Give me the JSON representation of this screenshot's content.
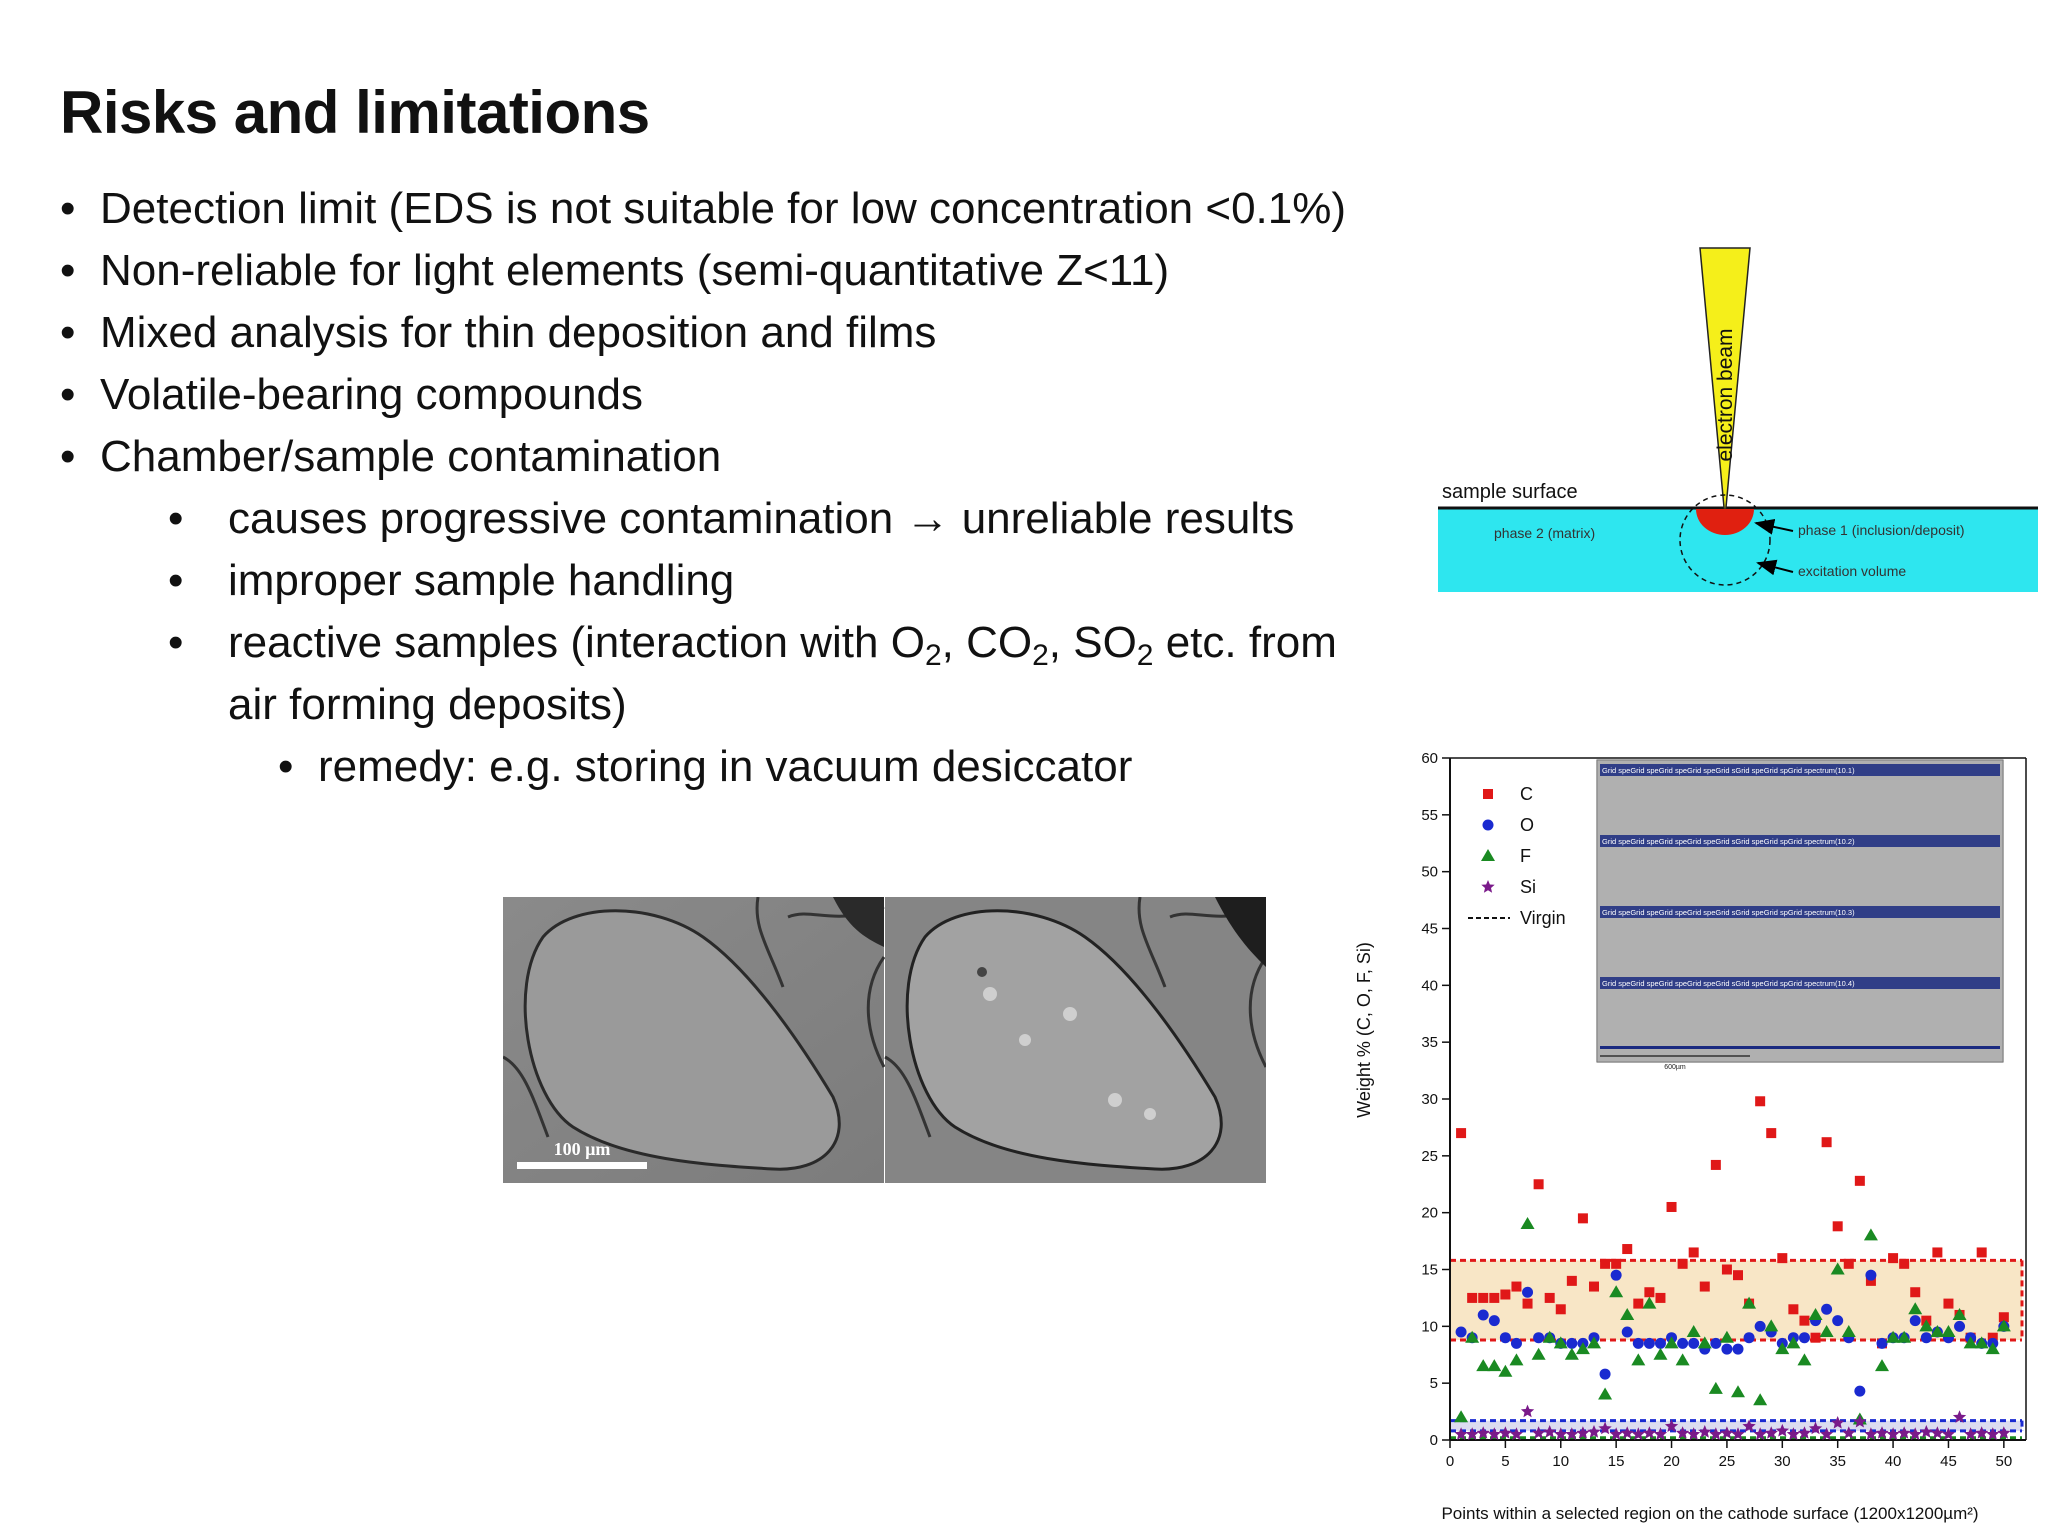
{
  "slide": {
    "title": "Risks and limitations",
    "bullets": [
      "Detection limit (EDS is not suitable for low concentration <0.1%)",
      "Non-reliable for light elements (semi-quantitative Z<11)",
      "Mixed analysis for thin deposition and films",
      "Volatile-bearing compounds",
      "Chamber/sample contamination"
    ],
    "sub_bullets": [
      "causes progressive contamination → unreliable results",
      "improper sample handling"
    ],
    "reactive": {
      "p1": "reactive samples (interaction with O",
      "s1": "2",
      "p2": ", CO",
      "s2": "2",
      "p3": ", SO",
      "s3": "2",
      "p4": " etc. from",
      "line2": "air forming deposits)"
    },
    "remedy": "remedy: e.g. storing in vacuum desiccator",
    "bullet_glyph": "•"
  },
  "diagram": {
    "beam_label": "electron beam",
    "surface_label": "sample surface",
    "matrix_label": "phase 2 (matrix)",
    "inclusion_label": "phase 1 (inclusion/deposit)",
    "volume_label": "excitation volume",
    "colors": {
      "beam": "#f5ef1a",
      "sample": "#2ee6ef",
      "inclusion": "#e02010"
    }
  },
  "micrograph": {
    "scale_label": "100 µm"
  },
  "chart_data": {
    "type": "scatter",
    "xlabel": "Points within a selected region on the cathode surface (1200x1200µm²)",
    "ylabel": "Weight % (C, O, F, Si)",
    "xlim": [
      0,
      52
    ],
    "ylim": [
      0,
      60
    ],
    "xticks": [
      0,
      5,
      10,
      15,
      20,
      25,
      30,
      35,
      40,
      45,
      50
    ],
    "yticks": [
      0,
      5,
      10,
      15,
      20,
      25,
      30,
      35,
      40,
      45,
      50,
      55,
      60
    ],
    "legend_position": "top-left",
    "series": [
      {
        "name": "C",
        "color": "#e01818",
        "marker": "square",
        "x": [
          1,
          2,
          3,
          4,
          5,
          6,
          7,
          8,
          9,
          10,
          11,
          12,
          13,
          14,
          15,
          16,
          17,
          18,
          19,
          20,
          21,
          22,
          23,
          24,
          25,
          26,
          27,
          28,
          29,
          30,
          31,
          32,
          33,
          34,
          35,
          36,
          37,
          38,
          39,
          40,
          41,
          42,
          43,
          44,
          45,
          46,
          47,
          48,
          49,
          50
        ],
        "y": [
          27,
          12.5,
          12.5,
          12.5,
          12.8,
          13.5,
          12,
          22.5,
          12.5,
          11.5,
          14,
          19.5,
          13.5,
          15.5,
          15.5,
          16.8,
          12,
          13,
          12.5,
          20.5,
          15.5,
          16.5,
          13.5,
          24.2,
          15,
          14.5,
          12,
          29.8,
          27,
          16,
          11.5,
          10.5,
          9,
          26.2,
          18.8,
          15.5,
          22.8,
          14,
          8.5,
          16,
          15.5,
          13,
          10.5,
          16.5,
          12,
          11,
          9,
          16.5,
          9,
          10.8
        ]
      },
      {
        "name": "O",
        "color": "#1a2ad0",
        "marker": "circle",
        "x": [
          1,
          2,
          3,
          4,
          5,
          6,
          7,
          8,
          9,
          10,
          11,
          12,
          13,
          14,
          15,
          16,
          17,
          18,
          19,
          20,
          21,
          22,
          23,
          24,
          25,
          26,
          27,
          28,
          29,
          30,
          31,
          32,
          33,
          34,
          35,
          36,
          37,
          38,
          39,
          40,
          41,
          42,
          43,
          44,
          45,
          46,
          47,
          48,
          49,
          50
        ],
        "y": [
          9.5,
          9,
          11,
          10.5,
          9,
          8.5,
          13,
          9,
          9,
          8.5,
          8.5,
          8.5,
          9,
          5.8,
          14.5,
          9.5,
          8.5,
          8.5,
          8.5,
          9,
          8.5,
          8.5,
          8,
          8.5,
          8,
          8,
          9,
          10,
          9.5,
          8.5,
          9,
          9,
          10.5,
          11.5,
          10.5,
          9,
          4.3,
          14.5,
          8.5,
          9,
          9,
          10.5,
          9,
          9.5,
          9,
          10,
          9,
          8.5,
          8.5,
          10
        ]
      },
      {
        "name": "F",
        "color": "#1a8a22",
        "marker": "triangle",
        "x": [
          1,
          2,
          3,
          4,
          5,
          6,
          7,
          8,
          9,
          10,
          11,
          12,
          13,
          14,
          15,
          16,
          17,
          18,
          19,
          20,
          21,
          22,
          23,
          24,
          25,
          26,
          27,
          28,
          29,
          30,
          31,
          32,
          33,
          34,
          35,
          36,
          37,
          38,
          39,
          40,
          41,
          42,
          43,
          44,
          45,
          46,
          47,
          48,
          49,
          50
        ],
        "y": [
          2,
          9,
          6.5,
          6.5,
          6,
          7,
          19,
          7.5,
          9,
          8.5,
          7.5,
          8,
          8.5,
          4,
          13,
          11,
          7,
          12,
          7.5,
          8.5,
          7,
          9.5,
          8.5,
          4.5,
          9,
          4.2,
          12,
          3.5,
          10,
          8,
          8.5,
          7,
          11,
          9.5,
          15,
          9.5,
          1.8,
          18,
          6.5,
          9,
          9,
          11.5,
          10,
          9.5,
          9.5,
          11,
          8.5,
          8.5,
          8,
          10
        ]
      },
      {
        "name": "Si",
        "color": "#7a1a8a",
        "marker": "star",
        "x": [
          1,
          2,
          3,
          4,
          5,
          6,
          7,
          8,
          9,
          10,
          11,
          12,
          13,
          14,
          15,
          16,
          17,
          18,
          19,
          20,
          21,
          22,
          23,
          24,
          25,
          26,
          27,
          28,
          29,
          30,
          31,
          32,
          33,
          34,
          35,
          36,
          37,
          38,
          39,
          40,
          41,
          42,
          43,
          44,
          45,
          46,
          47,
          48,
          49,
          50
        ],
        "y": [
          0.5,
          0.5,
          0.6,
          0.5,
          0.6,
          0.5,
          2.5,
          0.6,
          0.7,
          0.5,
          0.5,
          0.6,
          0.7,
          1,
          0.5,
          0.6,
          0.5,
          0.6,
          0.5,
          1.2,
          0.6,
          0.5,
          0.7,
          0.5,
          0.6,
          0.5,
          1.2,
          0.5,
          0.6,
          0.8,
          0.5,
          0.6,
          1,
          0.5,
          1.5,
          0.6,
          1.6,
          0.5,
          0.6,
          0.5,
          0.6,
          0.5,
          0.7,
          0.6,
          0.5,
          2,
          0.5,
          0.6,
          0.5,
          0.6
        ]
      },
      {
        "name": "Virgin",
        "color": "#111111",
        "marker": "dashed-line"
      }
    ],
    "bands": [
      {
        "lower": 8.8,
        "upper": 15.8,
        "color": "#e01818",
        "fill": "#f8e6c6"
      },
      {
        "lower": 0.8,
        "upper": 1.7,
        "color": "#1a2ad0",
        "fill": "#dcdcf0"
      },
      {
        "lower": 0.1,
        "upper": 0.2,
        "color": "#1a8a22",
        "fill": ""
      }
    ],
    "inset": {
      "row_labels": [
        "Grid speGrid speGrid speGrid speGrid sGrid speGrid spGrid spectrum(10.1)",
        "Grid speGrid speGrid speGrid speGrid sGrid speGrid spGrid spectrum(10.2)",
        "Grid speGrid speGrid speGrid speGrid sGrid speGrid spGrid spectrum(10.3)",
        "Grid speGrid speGrid speGrid speGrid sGrid speGrid spGrid spectrum(10.4)"
      ],
      "scale_label": "600µm"
    }
  }
}
